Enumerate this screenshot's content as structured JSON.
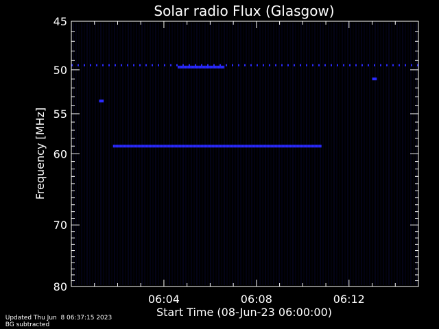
{
  "chart_data": {
    "type": "heatmap",
    "title": "Solar radio Flux (Glasgow)",
    "xlabel": "Start Time (08-Jun-23 06:00:00)",
    "ylabel": "Frequency [MHz]",
    "x_ticks": [
      "06:04",
      "06:08",
      "06:12"
    ],
    "x_tick_minutes": [
      4,
      8,
      12
    ],
    "xlim_minutes": [
      0,
      15
    ],
    "y_ticks": [
      45,
      50,
      55,
      60,
      70,
      80
    ],
    "ylim": [
      45,
      80
    ],
    "y_scale": "log",
    "features": [
      {
        "label": "band-49.5MHz",
        "freq_mhz": 49.5,
        "start_min": 0.0,
        "end_min": 15.0,
        "intensity": "medium"
      },
      {
        "label": "band-49.7MHz-strong",
        "freq_mhz": 49.7,
        "start_min": 4.6,
        "end_min": 6.6,
        "intensity": "high"
      },
      {
        "label": "band-59MHz",
        "freq_mhz": 59.0,
        "start_min": 1.8,
        "end_min": 10.8,
        "intensity": "high"
      },
      {
        "label": "spot-53.5",
        "freq_mhz": 53.5,
        "start_min": 1.2,
        "end_min": 1.4,
        "intensity": "high"
      },
      {
        "label": "spot-51",
        "freq_mhz": 51.0,
        "start_min": 13.0,
        "end_min": 13.2,
        "intensity": "medium"
      }
    ],
    "colors": {
      "background": "#000000",
      "signal": "#2a2aff",
      "faint": "#0a0a40",
      "axes": "#ffffff"
    }
  },
  "footer": {
    "updated": "Updated Thu Jun  8 06:37:15 2023",
    "note": "BG subtracted"
  }
}
